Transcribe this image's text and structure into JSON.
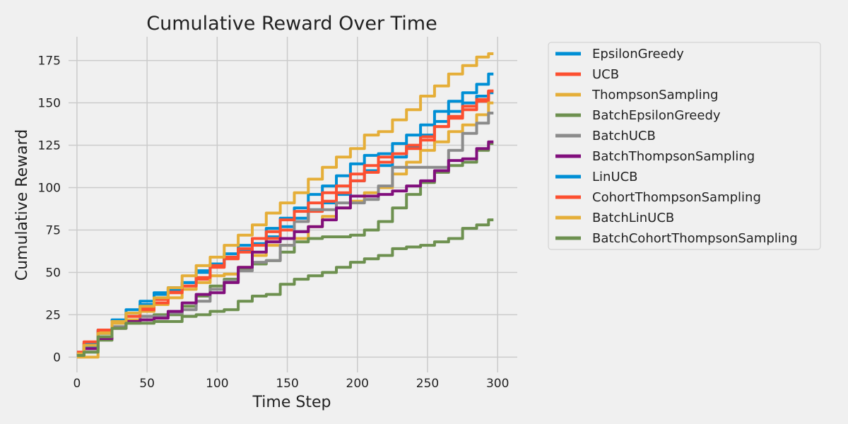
{
  "chart_data": {
    "type": "line",
    "title": "Cumulative Reward Over Time",
    "xlabel": "Time Step",
    "ylabel": "Cumulative Reward",
    "xlim": [
      -6,
      314
    ],
    "ylim": [
      -9,
      189
    ],
    "xticks": [
      0,
      50,
      100,
      150,
      200,
      250,
      300
    ],
    "yticks": [
      0,
      25,
      50,
      75,
      100,
      125,
      150,
      175
    ],
    "grid": true,
    "legend_position": "outside-right",
    "series": [
      {
        "name": "EpsilonGreedy",
        "color": "#008fd5",
        "x": [
          0,
          10,
          20,
          30,
          40,
          50,
          60,
          70,
          80,
          90,
          100,
          110,
          120,
          130,
          140,
          150,
          160,
          170,
          180,
          190,
          200,
          210,
          220,
          230,
          240,
          250,
          260,
          270,
          280,
          290,
          297
        ],
        "y": [
          1,
          6,
          14,
          20,
          26,
          31,
          37,
          41,
          44,
          50,
          55,
          59,
          63,
          67,
          71,
          77,
          82,
          87,
          91,
          96,
          104,
          110,
          113,
          118,
          124,
          131,
          139,
          145,
          150,
          154,
          156
        ]
      },
      {
        "name": "UCB",
        "color": "#fc4f30",
        "x": [
          0,
          10,
          20,
          30,
          40,
          50,
          60,
          70,
          80,
          90,
          100,
          110,
          120,
          130,
          140,
          150,
          160,
          170,
          180,
          190,
          200,
          210,
          220,
          230,
          240,
          250,
          260,
          270,
          280,
          290,
          297
        ],
        "y": [
          2,
          8,
          15,
          21,
          26,
          29,
          34,
          39,
          42,
          46,
          53,
          58,
          62,
          66,
          70,
          75,
          80,
          86,
          92,
          97,
          104,
          109,
          115,
          120,
          125,
          130,
          136,
          141,
          146,
          151,
          157
        ]
      },
      {
        "name": "ThompsonSampling",
        "color": "#e5ae38",
        "x": [
          0,
          10,
          20,
          30,
          40,
          50,
          60,
          70,
          80,
          90,
          100,
          110,
          120,
          130,
          140,
          150,
          160,
          170,
          180,
          190,
          200,
          210,
          220,
          230,
          240,
          250,
          260,
          270,
          280,
          290,
          297
        ],
        "y": [
          0,
          0,
          15,
          20,
          22,
          27,
          31,
          35,
          40,
          44,
          48,
          49,
          53,
          60,
          66,
          66,
          70,
          77,
          83,
          88,
          92,
          97,
          100,
          108,
          115,
          122,
          127,
          133,
          137,
          143,
          150
        ]
      },
      {
        "name": "BatchEpsilonGreedy",
        "color": "#6d904f",
        "x": [
          0,
          10,
          20,
          30,
          40,
          50,
          60,
          70,
          80,
          90,
          100,
          110,
          120,
          130,
          140,
          150,
          160,
          170,
          180,
          190,
          200,
          210,
          220,
          230,
          240,
          250,
          260,
          270,
          280,
          290,
          297
        ],
        "y": [
          1,
          3,
          10,
          17,
          20,
          22,
          25,
          25,
          30,
          36,
          42,
          46,
          52,
          55,
          57,
          62,
          68,
          70,
          71,
          71,
          72,
          75,
          80,
          88,
          96,
          103,
          109,
          113,
          115,
          122,
          126
        ]
      },
      {
        "name": "BatchUCB",
        "color": "#8b8b8b",
        "x": [
          0,
          10,
          20,
          30,
          40,
          50,
          60,
          70,
          80,
          90,
          100,
          110,
          120,
          130,
          140,
          150,
          160,
          170,
          180,
          190,
          200,
          210,
          220,
          230,
          240,
          250,
          260,
          270,
          280,
          290,
          297
        ],
        "y": [
          1,
          5,
          12,
          18,
          21,
          24,
          24,
          26,
          28,
          33,
          40,
          45,
          51,
          56,
          57,
          66,
          80,
          87,
          87,
          91,
          91,
          93,
          101,
          112,
          112,
          112,
          112,
          122,
          132,
          138,
          144
        ]
      },
      {
        "name": "BatchThompsonSampling",
        "color": "#810f7c",
        "x": [
          0,
          10,
          20,
          30,
          40,
          50,
          60,
          70,
          80,
          90,
          100,
          110,
          120,
          130,
          140,
          150,
          160,
          170,
          180,
          190,
          200,
          210,
          220,
          230,
          240,
          250,
          260,
          270,
          280,
          290,
          297
        ],
        "y": [
          2,
          5,
          11,
          17,
          21,
          22,
          23,
          27,
          32,
          37,
          38,
          44,
          53,
          62,
          68,
          70,
          74,
          77,
          81,
          88,
          95,
          95,
          96,
          98,
          101,
          104,
          110,
          116,
          117,
          123,
          127
        ]
      },
      {
        "name": "LinUCB",
        "color": "#008fd5",
        "x": [
          0,
          10,
          20,
          30,
          40,
          50,
          60,
          70,
          80,
          90,
          100,
          110,
          120,
          130,
          140,
          150,
          160,
          170,
          180,
          190,
          200,
          210,
          220,
          230,
          240,
          250,
          260,
          270,
          280,
          290,
          297
        ],
        "y": [
          2,
          8,
          16,
          22,
          28,
          33,
          38,
          40,
          44,
          51,
          55,
          61,
          66,
          70,
          76,
          82,
          88,
          96,
          101,
          107,
          114,
          119,
          120,
          126,
          131,
          137,
          145,
          151,
          156,
          161,
          167
        ]
      },
      {
        "name": "CohortThompsonSampling",
        "color": "#fc4f30",
        "x": [
          0,
          10,
          20,
          30,
          40,
          50,
          60,
          70,
          80,
          90,
          100,
          110,
          120,
          130,
          140,
          150,
          160,
          170,
          180,
          190,
          200,
          210,
          220,
          230,
          240,
          250,
          260,
          270,
          280,
          290,
          297
        ],
        "y": [
          3,
          9,
          16,
          21,
          24,
          28,
          32,
          38,
          42,
          47,
          54,
          59,
          64,
          70,
          74,
          81,
          86,
          91,
          97,
          101,
          108,
          113,
          118,
          120,
          123,
          128,
          136,
          142,
          148,
          152,
          157
        ]
      },
      {
        "name": "BatchLinUCB",
        "color": "#e5ae38",
        "x": [
          0,
          10,
          20,
          30,
          40,
          50,
          60,
          70,
          80,
          90,
          100,
          110,
          120,
          130,
          140,
          150,
          160,
          170,
          180,
          190,
          200,
          210,
          220,
          230,
          240,
          250,
          260,
          270,
          280,
          290,
          297
        ],
        "y": [
          2,
          7,
          14,
          21,
          26,
          30,
          35,
          41,
          48,
          54,
          59,
          66,
          72,
          78,
          85,
          91,
          97,
          105,
          112,
          118,
          123,
          131,
          133,
          140,
          146,
          154,
          160,
          167,
          172,
          177,
          179
        ]
      },
      {
        "name": "BatchCohortThompsonSampling",
        "color": "#6d904f",
        "x": [
          0,
          10,
          20,
          30,
          40,
          50,
          60,
          70,
          80,
          90,
          100,
          110,
          120,
          130,
          140,
          150,
          160,
          170,
          180,
          190,
          200,
          210,
          220,
          230,
          240,
          250,
          260,
          270,
          280,
          290,
          297
        ],
        "y": [
          1,
          3,
          12,
          17,
          20,
          20,
          21,
          21,
          24,
          25,
          27,
          28,
          33,
          36,
          37,
          43,
          46,
          48,
          50,
          53,
          56,
          58,
          60,
          64,
          65,
          66,
          68,
          70,
          76,
          78,
          81
        ]
      }
    ]
  }
}
